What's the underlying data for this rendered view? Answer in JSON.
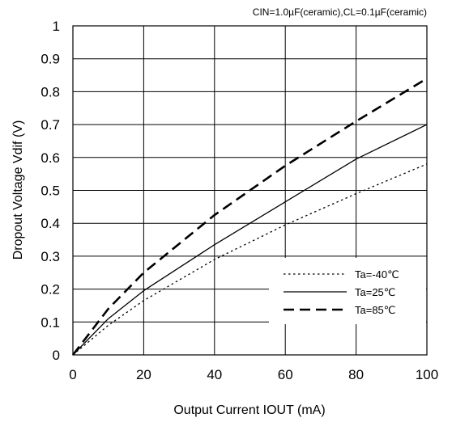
{
  "chart_data": {
    "type": "line",
    "title": "CIN=1.0µF(ceramic),CL=0.1µF(ceramic)",
    "xlabel": "Output Current IOUT (mA)",
    "ylabel": "Dropout Voltage Vdif (V)",
    "xlim": [
      0,
      100
    ],
    "ylim": [
      0,
      1
    ],
    "xticks": [
      "0",
      "20",
      "40",
      "60",
      "80",
      "100"
    ],
    "yticks": [
      "0",
      "0.1",
      "0.2",
      "0.3",
      "0.4",
      "0.5",
      "0.6",
      "0.7",
      "0.8",
      "0.9",
      "1"
    ],
    "grid": true,
    "legend_position": "bottom-right",
    "series": [
      {
        "name": "Ta=-40℃",
        "style": "dotted",
        "x": [
          0,
          10,
          20,
          40,
          60,
          80,
          100
        ],
        "y": [
          0,
          0.09,
          0.165,
          0.29,
          0.395,
          0.49,
          0.58
        ]
      },
      {
        "name": "Ta=25℃",
        "style": "solid",
        "x": [
          0,
          10,
          20,
          40,
          60,
          80,
          100
        ],
        "y": [
          0,
          0.11,
          0.195,
          0.335,
          0.465,
          0.595,
          0.7
        ]
      },
      {
        "name": "Ta=85℃",
        "style": "dashed",
        "x": [
          0,
          10,
          20,
          40,
          60,
          80,
          100
        ],
        "y": [
          0,
          0.14,
          0.25,
          0.425,
          0.575,
          0.71,
          0.84
        ]
      }
    ]
  }
}
